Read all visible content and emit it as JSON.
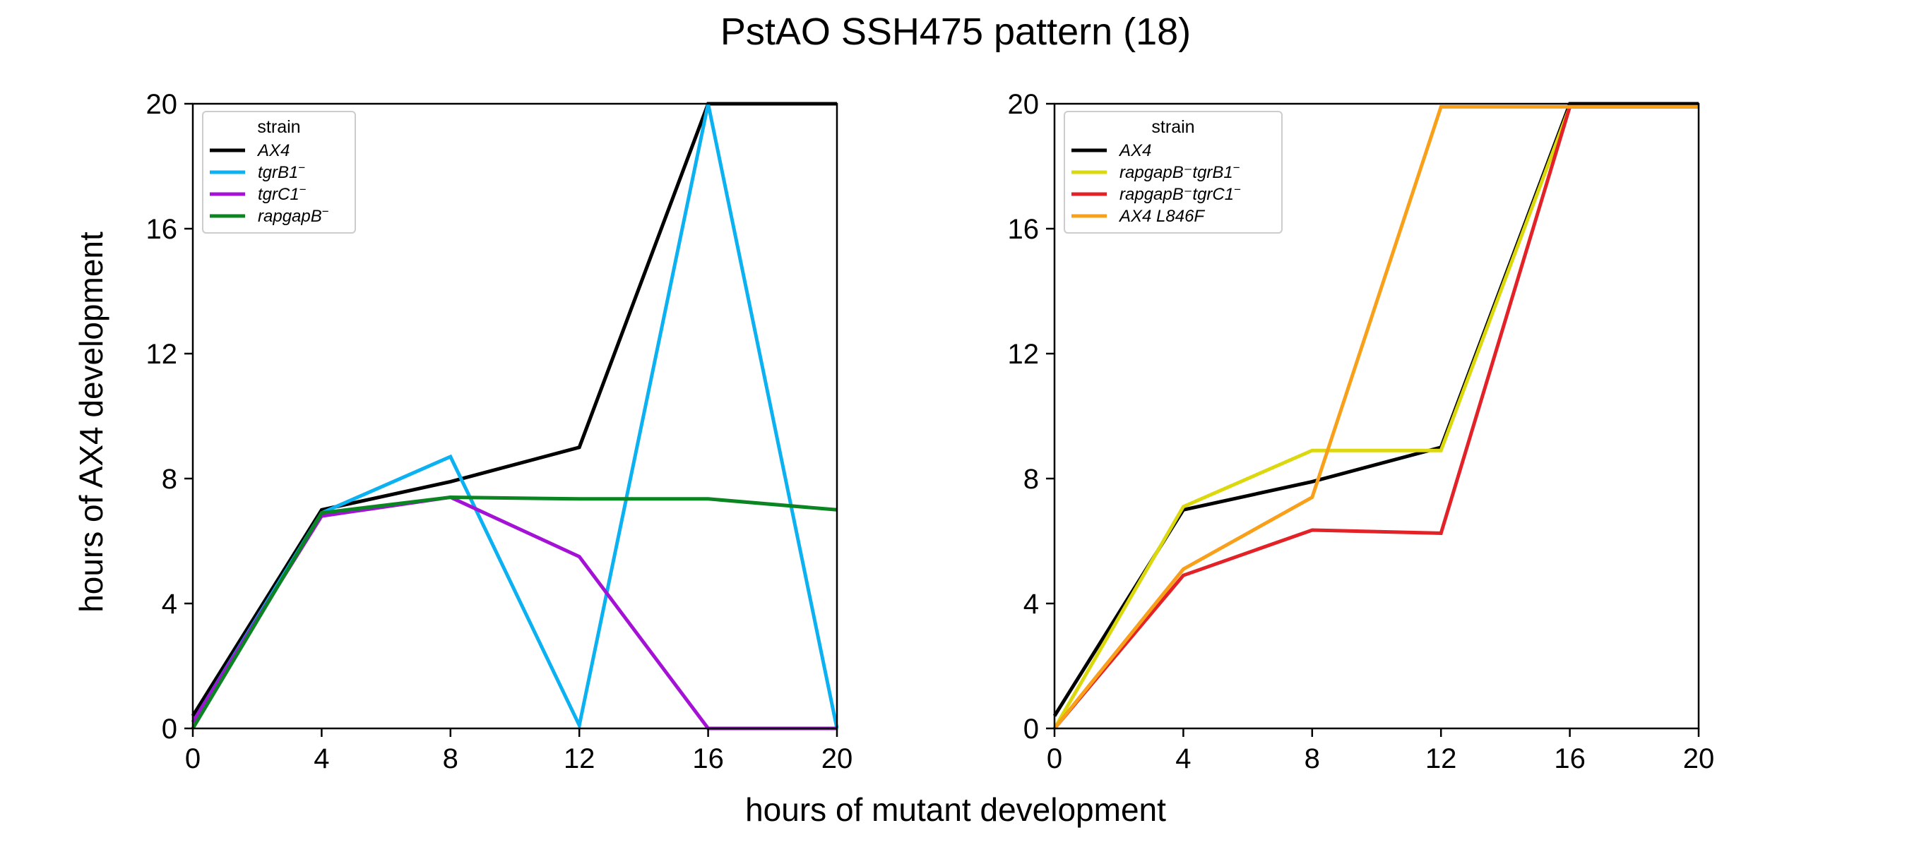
{
  "figure": {
    "title": "PstAO SSH475 pattern (18)",
    "xlabel": "hours of mutant development",
    "ylabel": "hours of AX4 development"
  },
  "chart_data": [
    {
      "type": "line",
      "legend_title": "strain",
      "legend_position": "upper-left",
      "xlim": [
        0,
        20
      ],
      "ylim": [
        0,
        20
      ],
      "x_ticks": [
        0,
        4,
        8,
        12,
        16,
        20
      ],
      "y_ticks": [
        0,
        4,
        8,
        12,
        16,
        20
      ],
      "x_tick_labels": [
        "0",
        "4",
        "8",
        "12",
        "16",
        "20"
      ],
      "y_tick_labels": [
        "0",
        "4",
        "8",
        "12",
        "16",
        "20"
      ],
      "grid": false,
      "series": [
        {
          "name": "AX4",
          "sup": "",
          "color": "#000000",
          "x": [
            0,
            4,
            8,
            12,
            16,
            20
          ],
          "y": [
            0.4,
            7.0,
            7.9,
            9.0,
            20.0,
            20.0
          ]
        },
        {
          "name": "tgrB1",
          "sup": "−",
          "color": "#0bb1f1",
          "x": [
            0,
            4,
            8,
            12,
            16,
            20
          ],
          "y": [
            0.2,
            6.9,
            8.7,
            0.1,
            20.0,
            0.0
          ]
        },
        {
          "name": "tgrC1",
          "sup": "−",
          "color": "#a412d6",
          "x": [
            0,
            4,
            8,
            12,
            16,
            20
          ],
          "y": [
            0.2,
            6.8,
            7.4,
            5.5,
            0.0,
            0.0
          ]
        },
        {
          "name": "rapgapB",
          "sup": "−",
          "color": "#0a8521",
          "x": [
            0,
            4,
            8,
            12,
            16,
            20
          ],
          "y": [
            0.0,
            6.9,
            7.4,
            7.35,
            7.35,
            7.0
          ]
        }
      ]
    },
    {
      "type": "line",
      "legend_title": "strain",
      "legend_position": "upper-left",
      "xlim": [
        0,
        20
      ],
      "ylim": [
        0,
        20
      ],
      "x_ticks": [
        0,
        4,
        8,
        12,
        16,
        20
      ],
      "y_ticks": [
        0,
        4,
        8,
        12,
        16,
        20
      ],
      "x_tick_labels": [
        "0",
        "4",
        "8",
        "12",
        "16",
        "20"
      ],
      "y_tick_labels": [
        "0",
        "4",
        "8",
        "12",
        "16",
        "20"
      ],
      "grid": false,
      "series": [
        {
          "name": "AX4",
          "sup": "",
          "color": "#000000",
          "x": [
            0,
            4,
            8,
            12,
            16,
            20
          ],
          "y": [
            0.4,
            7.0,
            7.9,
            9.0,
            20.0,
            20.0
          ]
        },
        {
          "name": "rapgapB⁻tgrB1",
          "sup": "−",
          "color": "#dbd80e",
          "x": [
            0,
            4,
            8,
            12,
            16,
            20
          ],
          "y": [
            0.0,
            7.1,
            8.9,
            8.9,
            19.9,
            19.9
          ]
        },
        {
          "name": "rapgapB⁻tgrC1",
          "sup": "−",
          "color": "#e32228",
          "x": [
            0,
            4,
            8,
            12,
            16,
            20
          ],
          "y": [
            0.0,
            4.9,
            6.35,
            6.25,
            19.9,
            19.9
          ]
        },
        {
          "name": "AX4 L846F",
          "sup": "",
          "color": "#f9a01b",
          "x": [
            0,
            4,
            8,
            12,
            16,
            20
          ],
          "y": [
            0.0,
            5.1,
            7.4,
            19.9,
            19.9,
            19.9
          ]
        }
      ]
    }
  ]
}
